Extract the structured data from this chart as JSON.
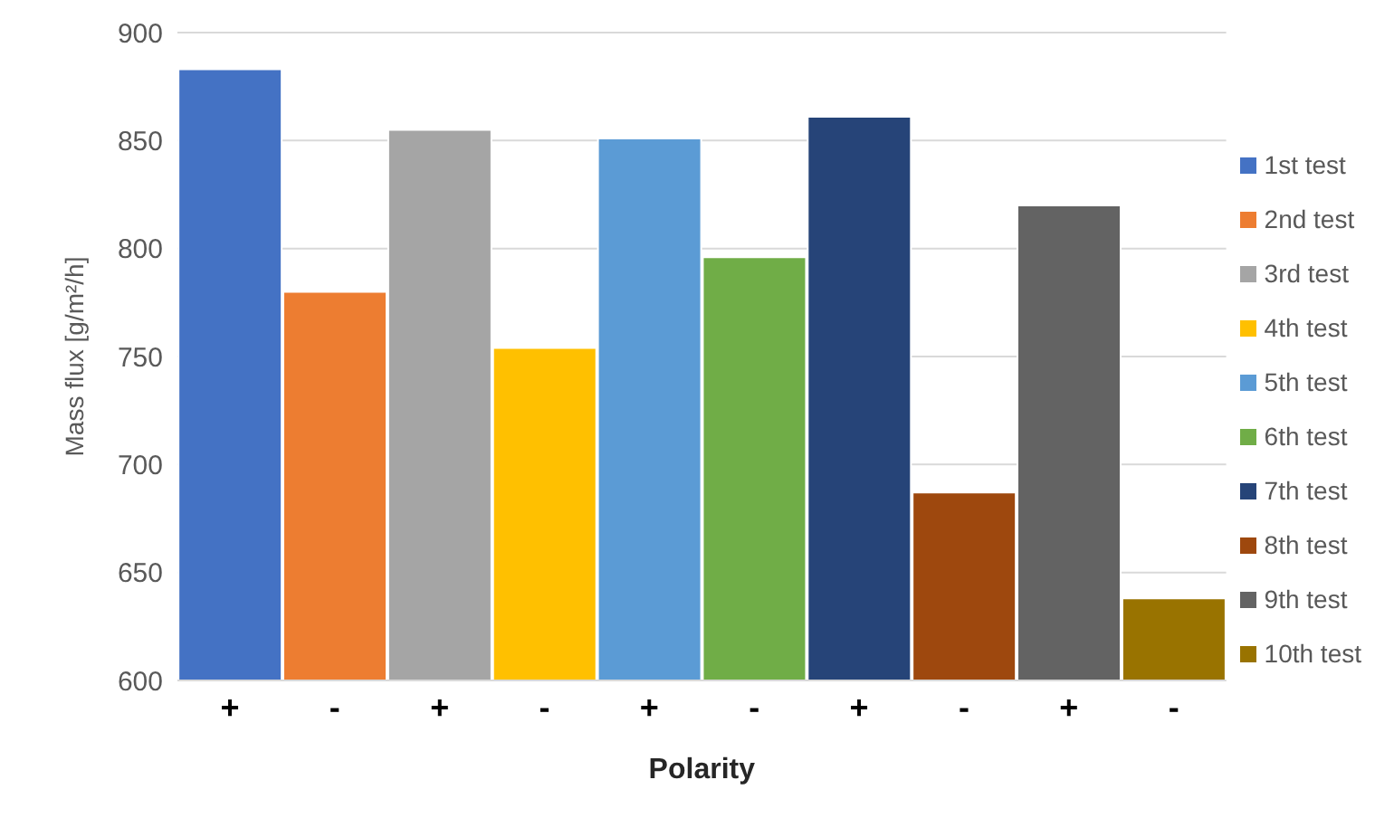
{
  "chart_data": {
    "type": "bar",
    "xlabel": "Polarity",
    "ylabel": "Mass flux [g/m²/h]",
    "categories": [
      "+",
      "-",
      "+",
      "-",
      "+",
      "-",
      "+",
      "-",
      "+",
      "-"
    ],
    "series": [
      {
        "name": "1st test",
        "color": "#4472c4",
        "values": [
          883,
          null,
          null,
          null,
          null,
          null,
          null,
          null,
          null,
          null
        ]
      },
      {
        "name": "2nd test",
        "color": "#ed7d31",
        "values": [
          null,
          780,
          null,
          null,
          null,
          null,
          null,
          null,
          null,
          null
        ]
      },
      {
        "name": "3rd test",
        "color": "#a5a5a5",
        "values": [
          null,
          null,
          855,
          null,
          null,
          null,
          null,
          null,
          null,
          null
        ]
      },
      {
        "name": "4th test",
        "color": "#ffc000",
        "values": [
          null,
          null,
          null,
          754,
          null,
          null,
          null,
          null,
          null,
          null
        ]
      },
      {
        "name": "5th test",
        "color": "#5b9bd5",
        "values": [
          null,
          null,
          null,
          null,
          851,
          null,
          null,
          null,
          null,
          null
        ]
      },
      {
        "name": "6th test",
        "color": "#70ad47",
        "values": [
          null,
          null,
          null,
          null,
          null,
          796,
          null,
          null,
          null,
          null
        ]
      },
      {
        "name": "7th test",
        "color": "#264478",
        "values": [
          null,
          null,
          null,
          null,
          null,
          null,
          861,
          null,
          null,
          null
        ]
      },
      {
        "name": "8th test",
        "color": "#9e480e",
        "values": [
          null,
          null,
          null,
          null,
          null,
          null,
          null,
          687,
          null,
          null
        ]
      },
      {
        "name": "9th test",
        "color": "#636363",
        "values": [
          null,
          null,
          null,
          null,
          null,
          null,
          null,
          null,
          820,
          null
        ]
      },
      {
        "name": "10th test",
        "color": "#997300",
        "values": [
          null,
          null,
          null,
          null,
          null,
          null,
          null,
          null,
          null,
          638
        ]
      }
    ],
    "ylim": [
      600,
      900
    ],
    "yticks": [
      600,
      650,
      700,
      750,
      800,
      850,
      900
    ],
    "grid": "y",
    "legend": "right"
  }
}
